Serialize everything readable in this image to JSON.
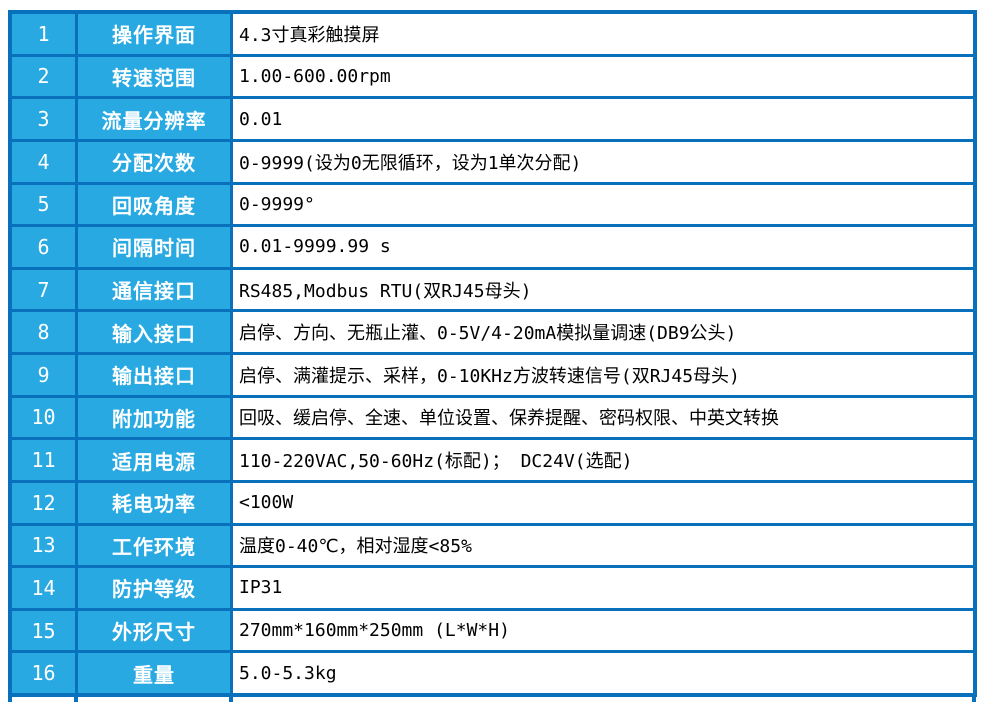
{
  "colors": {
    "background": "#FFFFFF",
    "border": "#0971BC",
    "cell_fill": "#29A9E1",
    "label_text": "#FFFFFF",
    "value_text": "#000000"
  },
  "table": {
    "rows": [
      {
        "num": "1",
        "label": "操作界面",
        "value": "4.3寸真彩触摸屏"
      },
      {
        "num": "2",
        "label": "转速范围",
        "value": "1.00-600.00rpm"
      },
      {
        "num": "3",
        "label": "流量分辨率",
        "value": "0.01"
      },
      {
        "num": "4",
        "label": "分配次数",
        "value": "0-9999(设为0无限循环，设为1单次分配)"
      },
      {
        "num": "5",
        "label": "回吸角度",
        "value": "0-9999°"
      },
      {
        "num": "6",
        "label": "间隔时间",
        "value": "0.01-9999.99  s"
      },
      {
        "num": "7",
        "label": "通信接口",
        "value": "RS485,Modbus  RTU(双RJ45母头)"
      },
      {
        "num": "8",
        "label": "输入接口",
        "value": "启停、方向、无瓶止灌、0-5V/4-20mA模拟量调速(DB9公头)"
      },
      {
        "num": "9",
        "label": "输出接口",
        "value": "启停、满灌提示、采样，0-10KHz方波转速信号(双RJ45母头)"
      },
      {
        "num": "10",
        "label": "附加功能",
        "value": "回吸、缓启停、全速、单位设置、保养提醒、密码权限、中英文转换"
      },
      {
        "num": "11",
        "label": "适用电源",
        "value": "110-220VAC,50-60Hz(标配)； DC24V(选配)"
      },
      {
        "num": "12",
        "label": "耗电功率",
        "value": "<100W"
      },
      {
        "num": "13",
        "label": "工作环境",
        "value": "温度0-40℃，相对湿度<85%"
      },
      {
        "num": "14",
        "label": "防护等级",
        "value": "IP31"
      },
      {
        "num": "15",
        "label": "外形尺寸",
        "value": "270mm*160mm*250mm  (L*W*H)"
      },
      {
        "num": "16",
        "label": "重量",
        "value": "5.0-5.3kg"
      }
    ]
  }
}
